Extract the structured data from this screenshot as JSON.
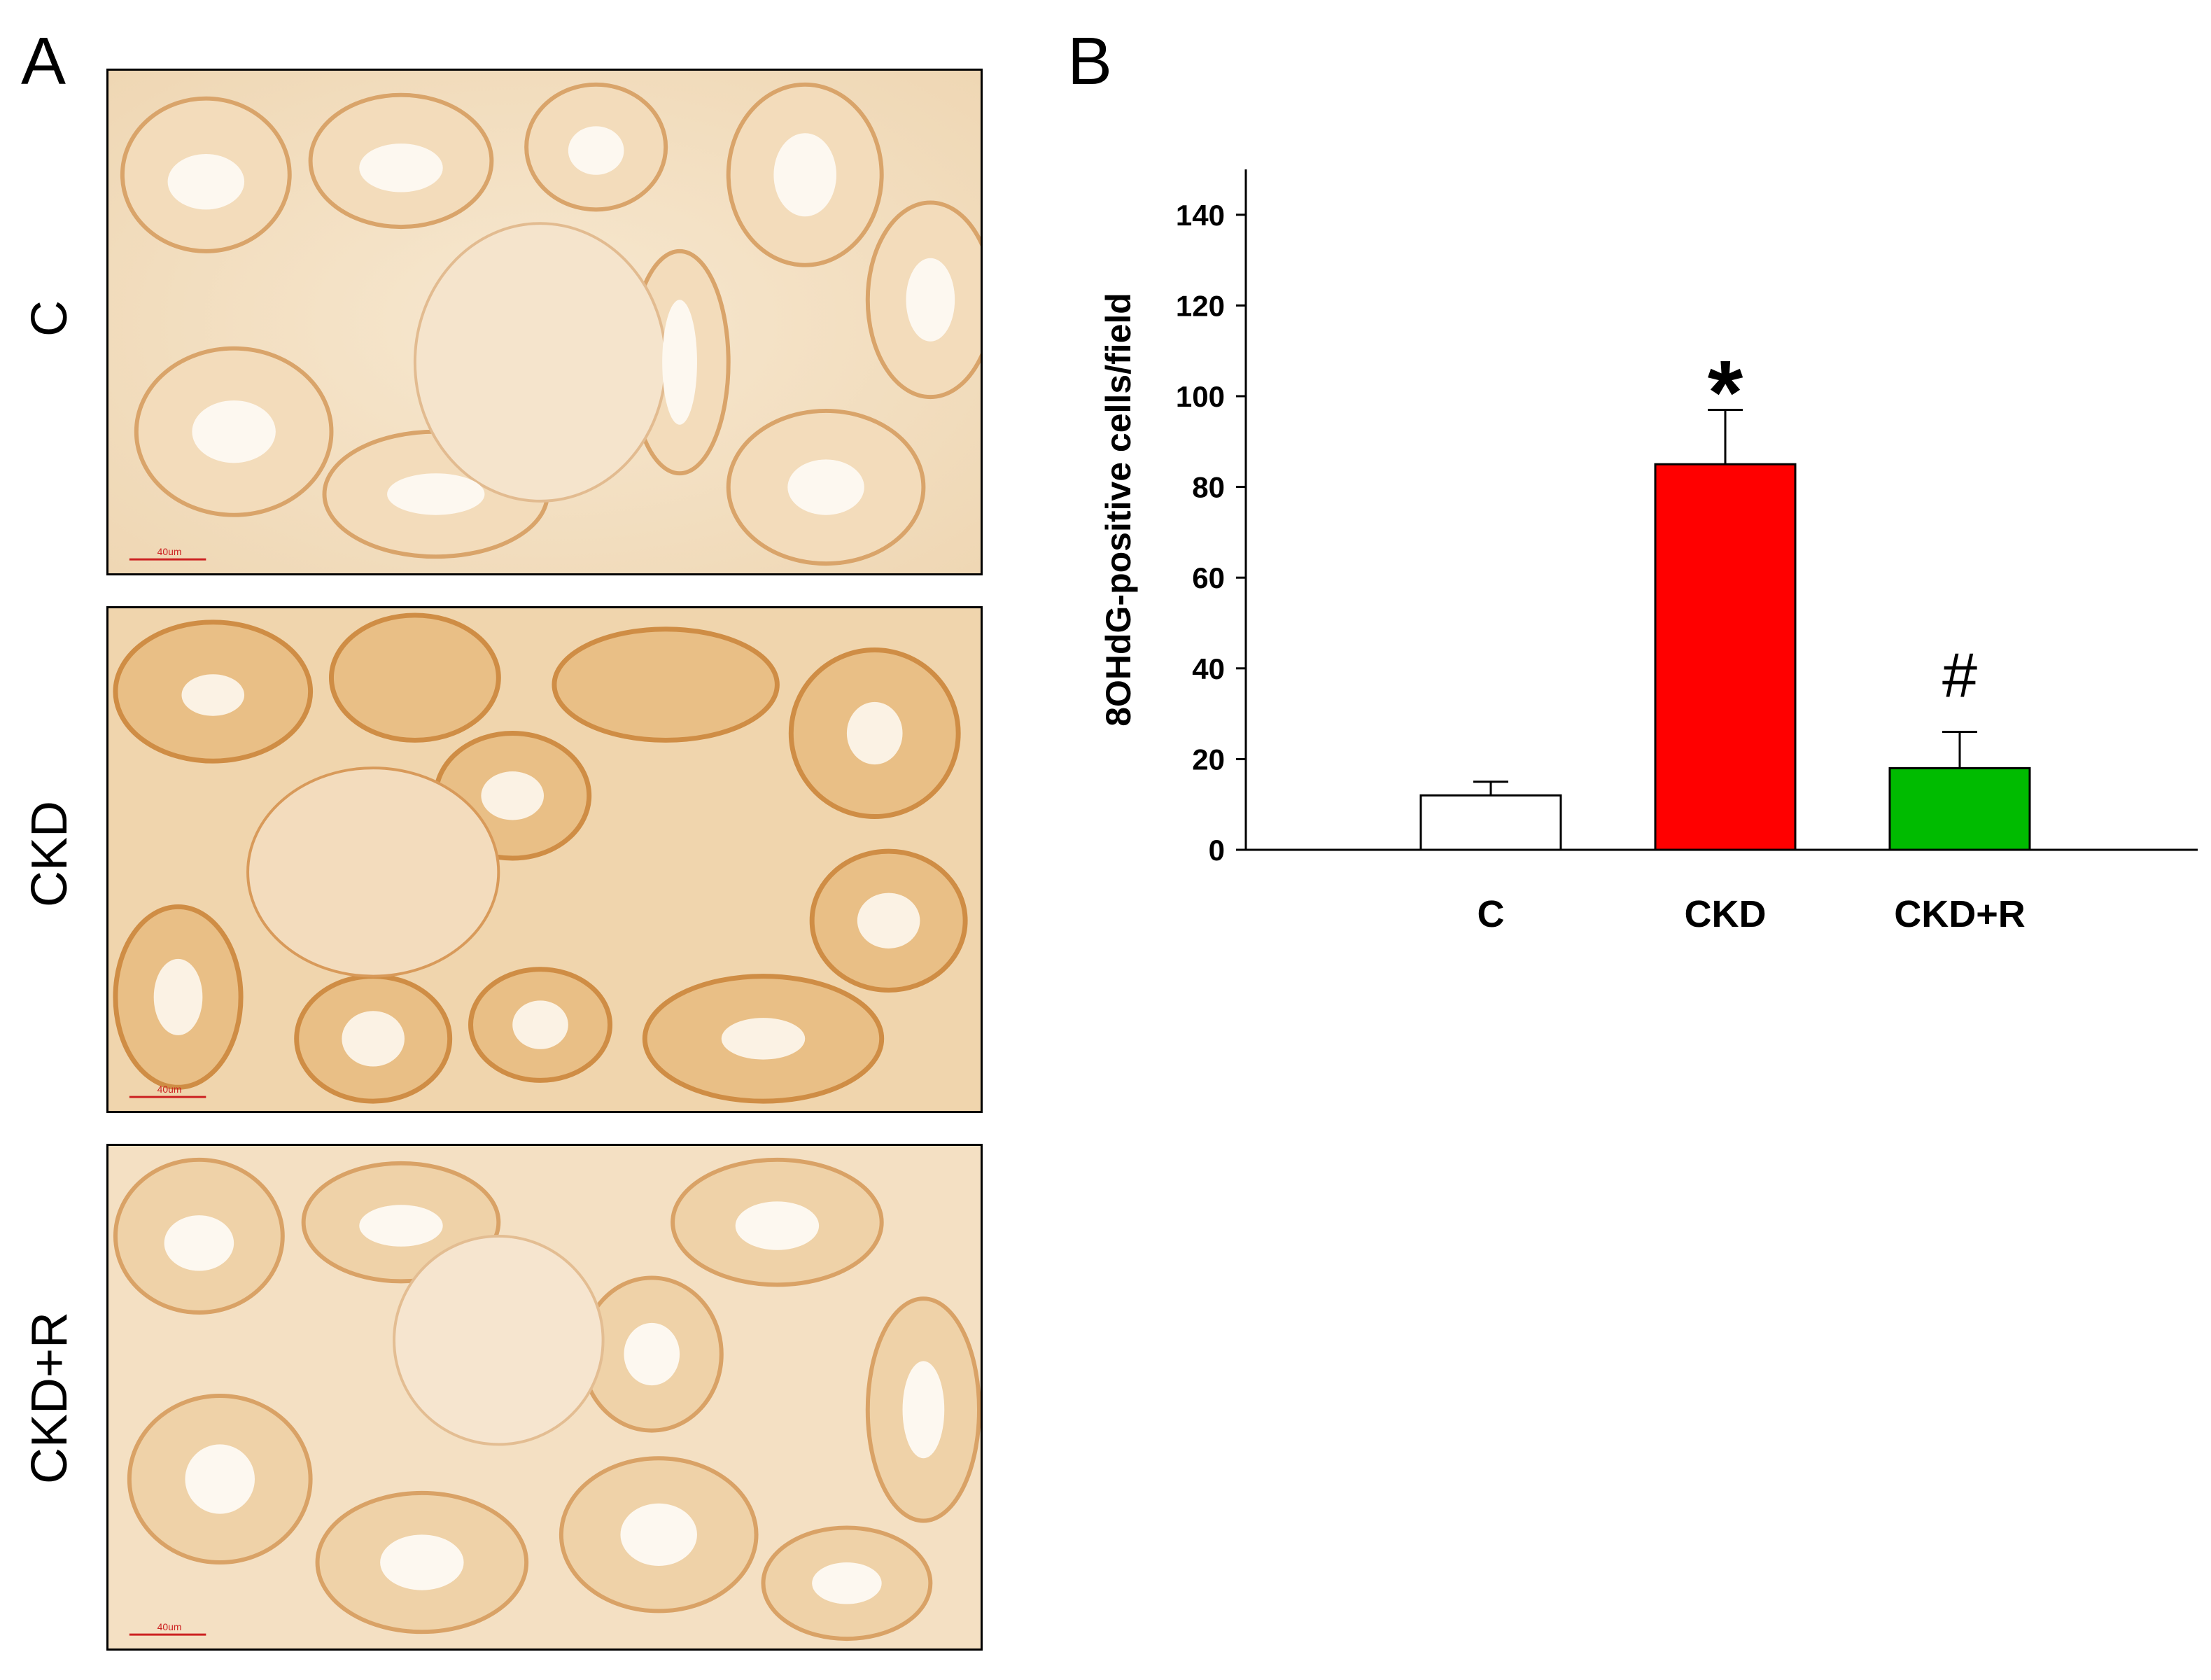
{
  "panel_a": {
    "letter": "A",
    "rows": [
      {
        "label": "C",
        "scale_bar": "40um"
      },
      {
        "label": "CKD",
        "scale_bar": "40um"
      },
      {
        "label": "CKD+R",
        "scale_bar": "40um"
      }
    ]
  },
  "panel_b": {
    "letter": "B"
  },
  "chart_data": {
    "type": "bar",
    "categories": [
      "C",
      "CKD",
      "CKD+R"
    ],
    "values": [
      12,
      85,
      18
    ],
    "errors": [
      3,
      12,
      8
    ],
    "annotations": [
      "",
      "*",
      "#"
    ],
    "ylabel": "8OHdG-positive cells/field",
    "ylim": [
      0,
      150
    ],
    "yticks": [
      0,
      20,
      40,
      60,
      80,
      100,
      120,
      140
    ],
    "bar_colors": [
      "#ffffff",
      "#ff0000",
      "#00bb00"
    ],
    "grid": false,
    "legend": "none"
  }
}
